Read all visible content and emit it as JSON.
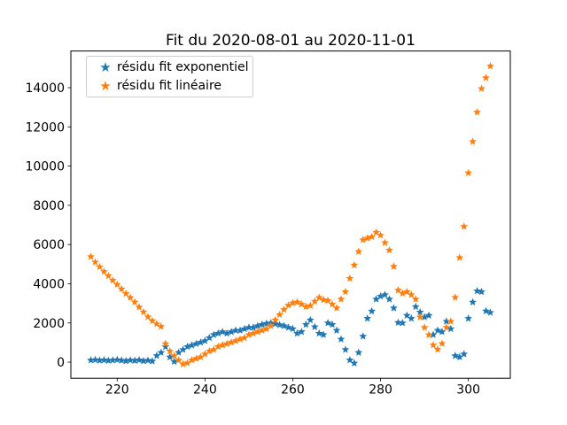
{
  "figure": {
    "background": "#ffffff"
  },
  "chart_data": {
    "type": "scatter",
    "title": "Fit du 2020-08-01 au 2020-11-01",
    "xlabel": "",
    "ylabel": "",
    "marker": "star",
    "grid": false,
    "legend_position": "upper left",
    "xlim": [
      209.45,
      309.55
    ],
    "ylim": [
      -820,
      15870
    ],
    "x_ticks": [
      220,
      240,
      260,
      280,
      300
    ],
    "y_ticks": [
      0,
      2000,
      4000,
      6000,
      8000,
      10000,
      12000,
      14000
    ],
    "x": [
      214,
      215,
      216,
      217,
      218,
      219,
      220,
      221,
      222,
      223,
      224,
      225,
      226,
      227,
      228,
      229,
      230,
      231,
      232,
      233,
      234,
      235,
      236,
      237,
      238,
      239,
      240,
      241,
      242,
      243,
      244,
      245,
      246,
      247,
      248,
      249,
      250,
      251,
      252,
      253,
      254,
      255,
      256,
      257,
      258,
      259,
      260,
      261,
      262,
      263,
      264,
      265,
      266,
      267,
      268,
      269,
      270,
      271,
      272,
      273,
      274,
      275,
      276,
      277,
      278,
      279,
      280,
      281,
      282,
      283,
      284,
      285,
      286,
      287,
      288,
      289,
      290,
      291,
      292,
      293,
      294,
      295,
      296,
      297,
      298,
      299,
      300,
      301,
      302,
      303,
      304,
      305
    ],
    "series": [
      {
        "name": "résidu fit exponentiel",
        "color": "#1f77b4",
        "y": [
          100,
          120,
          90,
          110,
          80,
          100,
          120,
          90,
          60,
          100,
          80,
          110,
          60,
          90,
          50,
          330,
          490,
          790,
          260,
          30,
          490,
          640,
          790,
          860,
          940,
          1010,
          1090,
          1240,
          1400,
          1470,
          1545,
          1470,
          1545,
          1620,
          1620,
          1695,
          1770,
          1770,
          1850,
          1920,
          1970,
          2000,
          1950,
          1900,
          1850,
          1770,
          1700,
          1470,
          1550,
          1920,
          2150,
          1800,
          1470,
          1400,
          2000,
          1920,
          1620,
          1170,
          640,
          105,
          -50,
          490,
          1320,
          2230,
          2600,
          3210,
          3360,
          3440,
          3210,
          2760,
          2020,
          2000,
          2380,
          2230,
          2830,
          2550,
          2300,
          2380,
          1400,
          1620,
          1545,
          2080,
          1700,
          330,
          260,
          410,
          2230,
          3060,
          3630,
          3590,
          2610,
          2530
        ]
      },
      {
        "name": "résidu fit linéaire",
        "color": "#ff7f0e",
        "y": [
          5380,
          5100,
          4860,
          4620,
          4400,
          4170,
          3960,
          3730,
          3500,
          3290,
          3060,
          2810,
          2560,
          2310,
          2110,
          1950,
          1820,
          940,
          560,
          330,
          100,
          -100,
          -40,
          100,
          180,
          260,
          410,
          560,
          640,
          790,
          870,
          940,
          1010,
          1090,
          1170,
          1240,
          1400,
          1470,
          1550,
          1620,
          1700,
          1850,
          2150,
          2420,
          2680,
          2900,
          3015,
          3060,
          2950,
          2830,
          2880,
          3100,
          3290,
          3180,
          3140,
          2950,
          2760,
          3210,
          3590,
          4270,
          4950,
          5640,
          6240,
          6320,
          6390,
          6620,
          6470,
          6090,
          5710,
          4880,
          3670,
          3510,
          3590,
          3440,
          3210,
          2300,
          1770,
          1395,
          870,
          650,
          950,
          1770,
          2080,
          3300,
          5330,
          6920,
          9650,
          11250,
          12750,
          13950,
          14500,
          15100
        ]
      }
    ]
  }
}
